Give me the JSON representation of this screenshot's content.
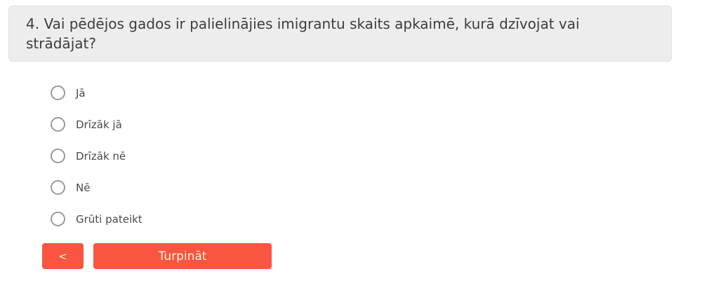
{
  "question": {
    "text": "4. Vai pēdējos gados ir palielinājies imigrantu skaits apkaimē, kurā dzīvojat vai strādājat?"
  },
  "options": [
    {
      "label": "Jā"
    },
    {
      "label": "Drīzāk jā"
    },
    {
      "label": "Drīzāk nē"
    },
    {
      "label": "Nē"
    },
    {
      "label": "Grūti pateikt"
    }
  ],
  "buttons": {
    "back_label": "<",
    "continue_label": "Turpināt"
  },
  "colors": {
    "accent": "#f95540",
    "question_bg": "#ededed",
    "question_text": "#3d3d3d",
    "option_text": "#4a4a4a",
    "radio_border": "#9a9a9a",
    "button_text": "#fcf2df"
  }
}
